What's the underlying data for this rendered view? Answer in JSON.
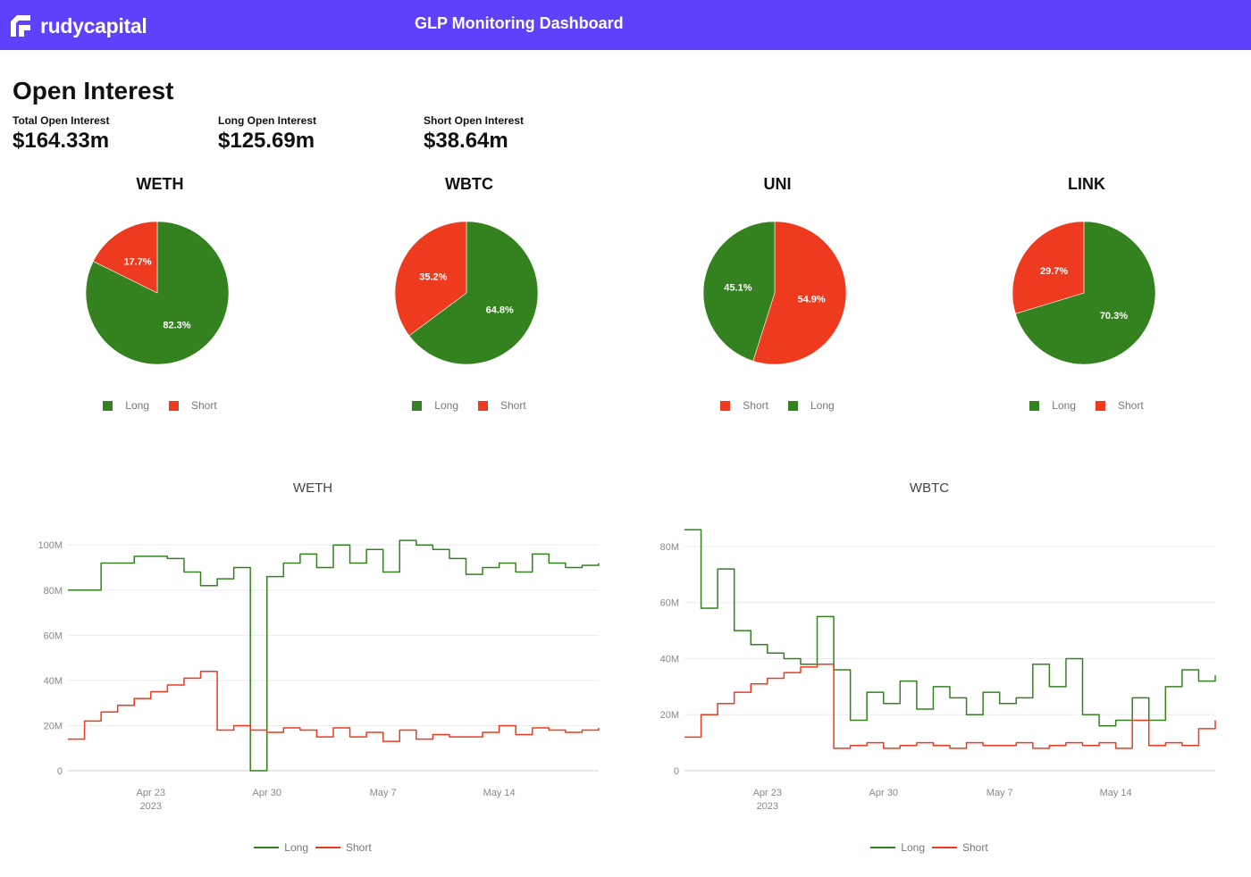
{
  "header": {
    "brand": "rudycapital",
    "title": "GLP Monitoring Dashboard",
    "color": "#5f41fb"
  },
  "section_title": "Open Interest",
  "stats": [
    {
      "label": "Total Open Interest",
      "value": "$164.33m"
    },
    {
      "label": "Long Open Interest",
      "value": "$125.69m"
    },
    {
      "label": "Short Open Interest",
      "value": "$38.64m"
    }
  ],
  "colors": {
    "long": "#33821f",
    "short": "#ee3a1e"
  },
  "chart_data": [
    {
      "type": "pie",
      "title": "WETH",
      "slices": [
        {
          "name": "Long",
          "value": 82.3,
          "label": "82.3%"
        },
        {
          "name": "Short",
          "value": 17.7,
          "label": "17.7%"
        }
      ],
      "legend": [
        "Long",
        "Short"
      ]
    },
    {
      "type": "pie",
      "title": "WBTC",
      "slices": [
        {
          "name": "Long",
          "value": 64.8,
          "label": "64.8%"
        },
        {
          "name": "Short",
          "value": 35.2,
          "label": "35.2%"
        }
      ],
      "legend": [
        "Long",
        "Short"
      ]
    },
    {
      "type": "pie",
      "title": "UNI",
      "slices": [
        {
          "name": "Short",
          "value": 54.9,
          "label": "54.9%"
        },
        {
          "name": "Long",
          "value": 45.1,
          "label": "45.1%"
        }
      ],
      "legend": [
        "Short",
        "Long"
      ]
    },
    {
      "type": "pie",
      "title": "LINK",
      "slices": [
        {
          "name": "Long",
          "value": 70.3,
          "label": "70.3%"
        },
        {
          "name": "Short",
          "value": 29.7,
          "label": "29.7%"
        }
      ],
      "legend": [
        "Long",
        "Short"
      ]
    },
    {
      "type": "line",
      "title": "WETH",
      "xlim": [
        "2023-04-18",
        "2023-05-20"
      ],
      "ylim": [
        0,
        108
      ],
      "yticks": [
        0,
        20,
        40,
        60,
        80,
        100
      ],
      "ytick_labels": [
        "0",
        "20M",
        "40M",
        "60M",
        "80M",
        "100M"
      ],
      "xticks": [
        "2023-04-23",
        "2023-04-30",
        "2023-05-07",
        "2023-05-14"
      ],
      "xtick_labels": [
        "Apr 23\n2023",
        "Apr 30",
        "May 7",
        "May 14"
      ],
      "series": [
        {
          "name": "Long",
          "x": [
            "2023-04-18",
            "2023-04-20",
            "2023-04-22",
            "2023-04-24",
            "2023-04-25",
            "2023-04-26",
            "2023-04-27",
            "2023-04-28",
            "2023-04-29",
            "2023-04-29",
            "2023-04-30",
            "2023-05-01",
            "2023-05-02",
            "2023-05-03",
            "2023-05-04",
            "2023-05-05",
            "2023-05-06",
            "2023-05-07",
            "2023-05-08",
            "2023-05-09",
            "2023-05-10",
            "2023-05-11",
            "2023-05-12",
            "2023-05-13",
            "2023-05-14",
            "2023-05-15",
            "2023-05-16",
            "2023-05-17",
            "2023-05-18",
            "2023-05-19",
            "2023-05-20"
          ],
          "y": [
            80,
            92,
            95,
            94,
            88,
            82,
            85,
            90,
            88,
            0,
            86,
            92,
            96,
            90,
            100,
            92,
            98,
            88,
            102,
            100,
            98,
            94,
            87,
            90,
            92,
            88,
            96,
            92,
            90,
            91,
            92
          ]
        },
        {
          "name": "Short",
          "x": [
            "2023-04-18",
            "2023-04-19",
            "2023-04-20",
            "2023-04-21",
            "2023-04-22",
            "2023-04-23",
            "2023-04-24",
            "2023-04-25",
            "2023-04-26",
            "2023-04-27",
            "2023-04-28",
            "2023-04-29",
            "2023-04-30",
            "2023-05-01",
            "2023-05-02",
            "2023-05-03",
            "2023-05-04",
            "2023-05-05",
            "2023-05-06",
            "2023-05-07",
            "2023-05-08",
            "2023-05-09",
            "2023-05-10",
            "2023-05-11",
            "2023-05-12",
            "2023-05-13",
            "2023-05-14",
            "2023-05-15",
            "2023-05-16",
            "2023-05-17",
            "2023-05-18",
            "2023-05-19",
            "2023-05-20"
          ],
          "y": [
            14,
            22,
            26,
            29,
            32,
            35,
            38,
            41,
            44,
            18,
            20,
            18,
            17,
            19,
            18,
            15,
            19,
            15,
            17,
            13,
            18,
            14,
            16,
            15,
            15,
            17,
            20,
            16,
            19,
            18,
            17,
            18,
            19
          ]
        }
      ],
      "legend": [
        "Long",
        "Short"
      ]
    },
    {
      "type": "line",
      "title": "WBTC",
      "xlim": [
        "2023-04-18",
        "2023-05-20"
      ],
      "ylim": [
        0,
        87
      ],
      "yticks": [
        0,
        20,
        40,
        60,
        80
      ],
      "ytick_labels": [
        "0",
        "20M",
        "40M",
        "60M",
        "80M"
      ],
      "xticks": [
        "2023-04-23",
        "2023-04-30",
        "2023-05-07",
        "2023-05-14"
      ],
      "xtick_labels": [
        "Apr 23\n2023",
        "Apr 30",
        "May 7",
        "May 14"
      ],
      "series": [
        {
          "name": "Long",
          "x": [
            "2023-04-18",
            "2023-04-19",
            "2023-04-20",
            "2023-04-21",
            "2023-04-22",
            "2023-04-23",
            "2023-04-24",
            "2023-04-25",
            "2023-04-26",
            "2023-04-27",
            "2023-04-28",
            "2023-04-29",
            "2023-04-30",
            "2023-05-01",
            "2023-05-02",
            "2023-05-03",
            "2023-05-04",
            "2023-05-05",
            "2023-05-06",
            "2023-05-07",
            "2023-05-08",
            "2023-05-09",
            "2023-05-10",
            "2023-05-11",
            "2023-05-12",
            "2023-05-13",
            "2023-05-14",
            "2023-05-15",
            "2023-05-16",
            "2023-05-17",
            "2023-05-18",
            "2023-05-19",
            "2023-05-20"
          ],
          "y": [
            86,
            58,
            72,
            50,
            45,
            42,
            40,
            38,
            55,
            36,
            18,
            28,
            24,
            32,
            22,
            30,
            26,
            20,
            28,
            24,
            26,
            38,
            30,
            40,
            20,
            16,
            18,
            26,
            18,
            30,
            36,
            32,
            34
          ]
        },
        {
          "name": "Short",
          "x": [
            "2023-04-18",
            "2023-04-19",
            "2023-04-20",
            "2023-04-21",
            "2023-04-22",
            "2023-04-23",
            "2023-04-24",
            "2023-04-25",
            "2023-04-26",
            "2023-04-27",
            "2023-04-28",
            "2023-04-29",
            "2023-04-30",
            "2023-05-01",
            "2023-05-02",
            "2023-05-03",
            "2023-05-04",
            "2023-05-05",
            "2023-05-06",
            "2023-05-07",
            "2023-05-08",
            "2023-05-09",
            "2023-05-10",
            "2023-05-11",
            "2023-05-12",
            "2023-05-13",
            "2023-05-14",
            "2023-05-15",
            "2023-05-16",
            "2023-05-17",
            "2023-05-18",
            "2023-05-19",
            "2023-05-20"
          ],
          "y": [
            12,
            20,
            24,
            28,
            31,
            33,
            35,
            37,
            38,
            8,
            9,
            10,
            8,
            9,
            10,
            9,
            8,
            10,
            9,
            9,
            10,
            8,
            9,
            10,
            9,
            10,
            8,
            18,
            9,
            10,
            9,
            15,
            18
          ]
        }
      ],
      "legend": [
        "Long",
        "Short"
      ]
    }
  ]
}
